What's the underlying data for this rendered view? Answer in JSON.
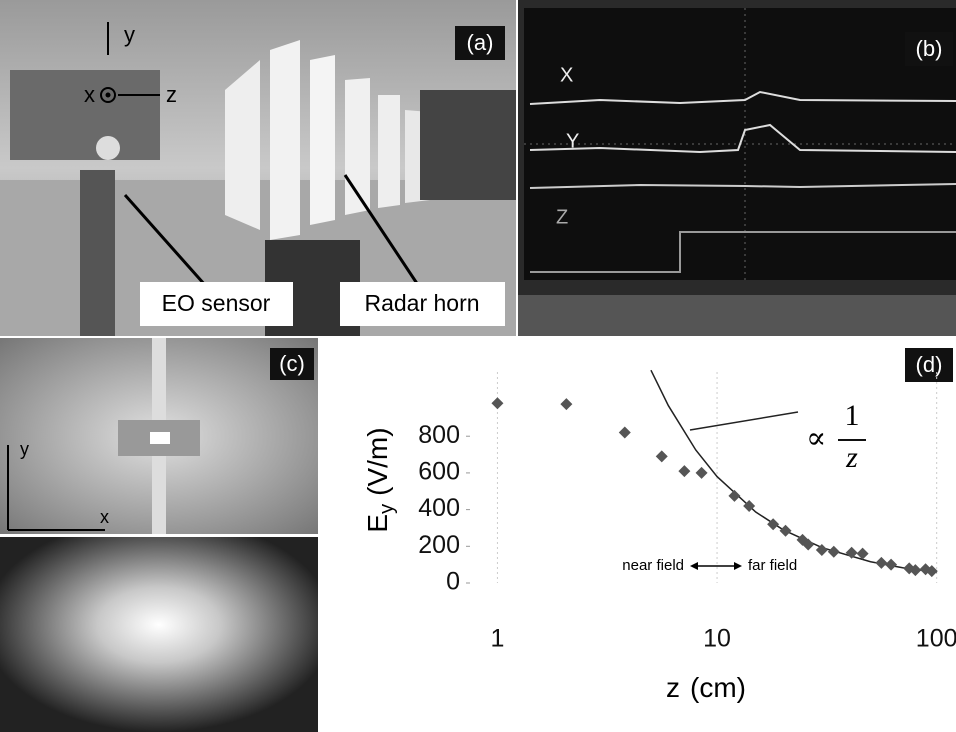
{
  "photo_a": {
    "label": "(a)",
    "axes": [
      "y",
      "x",
      "z"
    ],
    "callouts": [
      "EO sensor",
      "Radar horn"
    ]
  },
  "scope_b": {
    "label": "(b)",
    "traces": [
      "X",
      "Y",
      "Z"
    ]
  },
  "image_c": {
    "label": "(c)",
    "axes": [
      "y",
      "x"
    ]
  },
  "chart_data": {
    "type": "scatter",
    "label": "(d)",
    "x_label": "z",
    "x_unit": "(cm)",
    "y_label": "E",
    "y_subscript": "y",
    "y_unit": "(V/m)",
    "x": [
      1,
      2.06,
      3.8,
      5.6,
      7.1,
      8.5,
      12,
      14,
      18,
      20.5,
      24.5,
      26,
      30,
      34,
      41,
      46,
      56,
      62,
      75,
      80,
      89,
      95
    ],
    "values": [
      980,
      975,
      820,
      690,
      610,
      600,
      475,
      420,
      320,
      285,
      235,
      210,
      180,
      170,
      165,
      160,
      110,
      100,
      80,
      70,
      75,
      65
    ],
    "color": "#555555",
    "fit": {
      "x": [
        5,
        6,
        8,
        10,
        15,
        20,
        30,
        50,
        70,
        100
      ],
      "values": [
        1160,
        967,
        725,
        580,
        387,
        290,
        193,
        116,
        83,
        58
      ],
      "color": "#222222"
    },
    "fit_annotation": {
      "symbol": "∝",
      "numerator": "1",
      "denominator": "z"
    },
    "regions": [
      "near field",
      "far field"
    ],
    "xlim": [
      0.75,
      115
    ],
    "ylim": [
      0,
      1150
    ],
    "xticks": [
      1,
      10,
      100
    ],
    "yticks": [
      0,
      200,
      400,
      600,
      800
    ],
    "log_x": true
  }
}
